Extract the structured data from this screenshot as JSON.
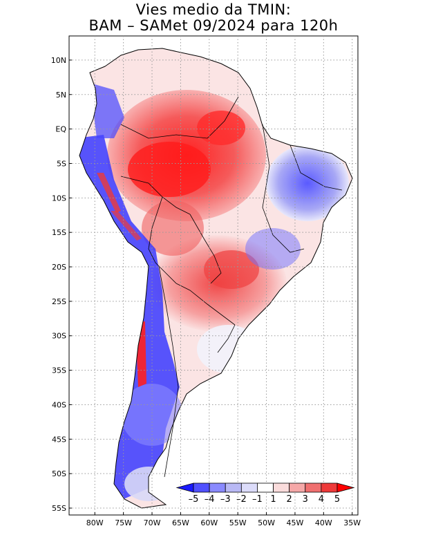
{
  "title": {
    "line1": "Vies medio da TMIN:",
    "line2": "BAM – SAMet 09/2024  para 120h"
  },
  "map": {
    "lat_labels": [
      "10N",
      "5N",
      "EQ",
      "5S",
      "10S",
      "15S",
      "20S",
      "25S",
      "30S",
      "35S",
      "40S",
      "45S",
      "50S",
      "55S"
    ],
    "lat_values": [
      10,
      5,
      0,
      -5,
      -10,
      -15,
      -20,
      -25,
      -30,
      -35,
      -40,
      -45,
      -50,
      -55
    ],
    "lon_labels": [
      "80W",
      "75W",
      "70W",
      "65W",
      "60W",
      "55W",
      "50W",
      "45W",
      "40W",
      "35W"
    ],
    "lon_values": [
      -80,
      -75,
      -70,
      -65,
      -60,
      -55,
      -50,
      -45,
      -40,
      -35
    ],
    "lon_range": [
      -84.5,
      -34
    ],
    "lat_range": [
      -56,
      13.5
    ]
  },
  "colorbar": {
    "labels": [
      "–5",
      "–4",
      "–3",
      "–2",
      "–1",
      "1",
      "2",
      "3",
      "4",
      "5"
    ],
    "colors": [
      "#1a1aff",
      "#5050ff",
      "#8a8aff",
      "#b9b9f5",
      "#dcdcfa",
      "#ffffff",
      "#fadcdc",
      "#f5a8a8",
      "#f07070",
      "#ee3a3a",
      "#ff0000"
    ]
  }
}
